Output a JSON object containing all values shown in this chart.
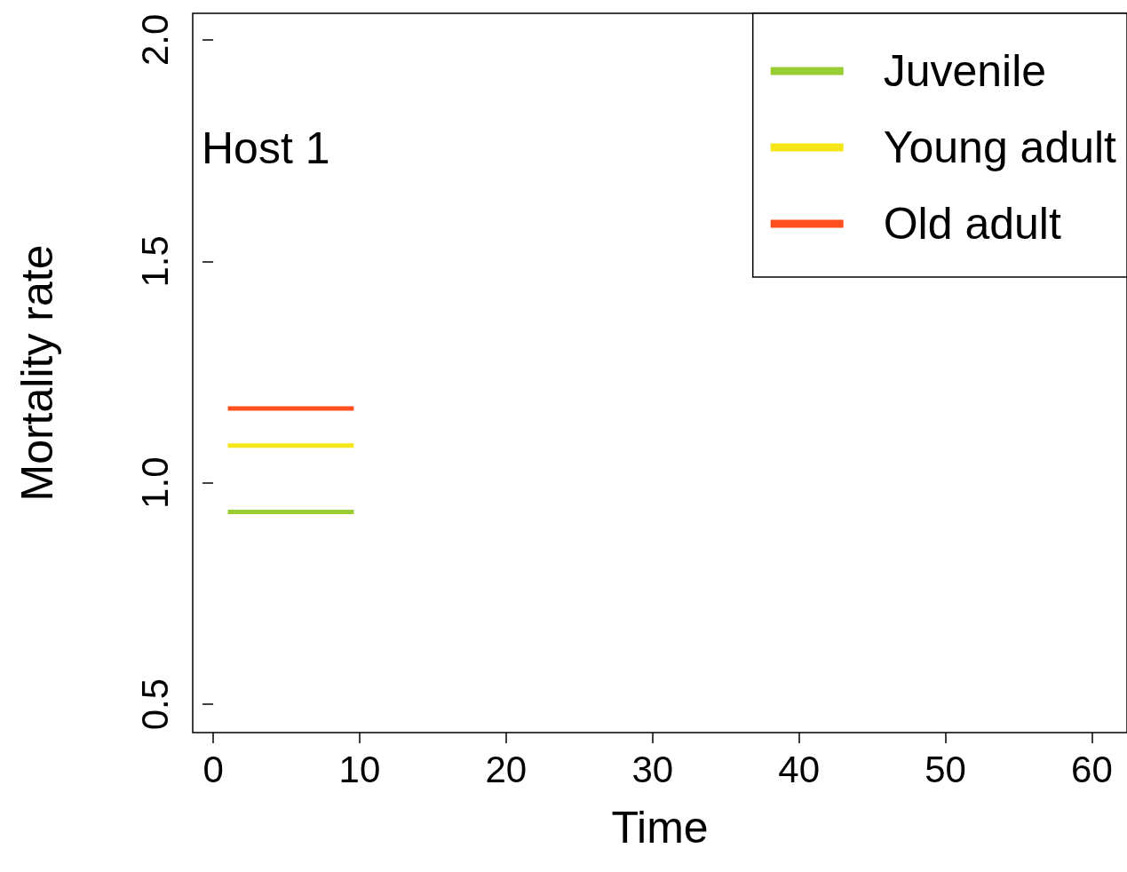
{
  "chart_data": {
    "type": "line",
    "xlabel": "Time",
    "ylabel": "Mortality rate",
    "annotations": [
      "Host 1"
    ],
    "xlim": [
      -1.4,
      62.4
    ],
    "ylim": [
      0.436,
      2.06
    ],
    "xticks": [
      0,
      10,
      20,
      30,
      40,
      50,
      60
    ],
    "yticks": [
      0.5,
      {
        "value": 1,
        "label": "1.0"
      },
      1.5,
      {
        "value": 2,
        "label": "2.0"
      }
    ],
    "x": [
      1,
      9.6
    ],
    "grid": false,
    "legend": "top right",
    "marker": "none",
    "line_style": "solid",
    "series": [
      {
        "name": "Juvenile",
        "color": "#9acd32",
        "values": [
          0.934,
          0.934
        ]
      },
      {
        "name": "Young adult",
        "color": "#f5e61a",
        "values": [
          1.084,
          1.084
        ]
      },
      {
        "name": "Old adult",
        "color": "#ff4f1f",
        "values": [
          1.168,
          1.168
        ]
      }
    ]
  }
}
